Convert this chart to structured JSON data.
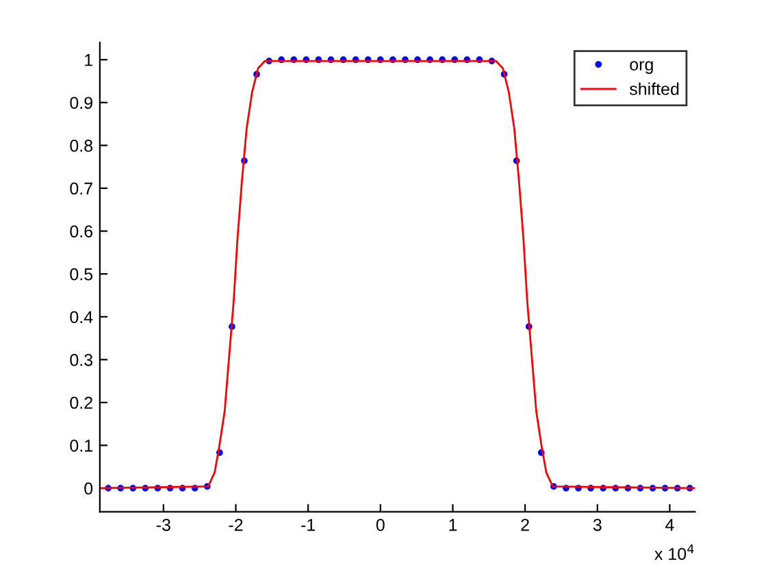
{
  "chart_data": {
    "type": "line",
    "series": [
      {
        "name": "org",
        "type": "scatter",
        "color": "#0000ff",
        "marker": "circle",
        "x": [
          -3.7642,
          -3.5931,
          -3.422,
          -3.2509,
          -3.0798,
          -2.9087,
          -2.7376,
          -2.5665,
          -2.3954,
          -2.2243,
          -2.0532,
          -1.8821,
          -1.711,
          -1.5399,
          -1.3688,
          -1.1977,
          -1.0266,
          -0.8555,
          -0.6844,
          -0.5133,
          -0.3422,
          -0.1711,
          0,
          0.1711,
          0.3422,
          0.5133,
          0.6844,
          0.8555,
          1.0266,
          1.1977,
          1.3688,
          1.5399,
          1.711,
          1.8821,
          2.0532,
          2.2243,
          2.3954,
          2.5665,
          2.7376,
          2.9087,
          3.0798,
          3.2509,
          3.422,
          3.5931,
          3.7642,
          3.9353,
          4.1064,
          4.2775
        ],
        "values": [
          0,
          0,
          0,
          0,
          0,
          0,
          0,
          0,
          0.004,
          0.083,
          0.377,
          0.764,
          0.966,
          0.997,
          1,
          1,
          1,
          1,
          1,
          1,
          1,
          1,
          1,
          1,
          1,
          1,
          1,
          1,
          1,
          1,
          1,
          0.997,
          0.966,
          0.764,
          0.377,
          0.083,
          0.004,
          0,
          0,
          0,
          0,
          0,
          0,
          0,
          0,
          0,
          0,
          0
        ]
      },
      {
        "name": "shifted",
        "color": "#ff0000",
        "line_style": "solid",
        "x": [
          -3.88,
          -2.383,
          -2.294,
          -2.231,
          -2.154,
          -2.091,
          -2.028,
          -1.978,
          -1.914,
          -1.85,
          -1.774,
          -1.692,
          -1.597,
          1.597,
          1.692,
          1.774,
          1.85,
          1.914,
          1.978,
          2.028,
          2.091,
          2.154,
          2.231,
          2.294,
          2.383,
          4.35
        ],
        "values": [
          0,
          0.004,
          0.036,
          0.095,
          0.18,
          0.31,
          0.44,
          0.58,
          0.72,
          0.84,
          0.925,
          0.98,
          0.997,
          0.997,
          0.98,
          0.925,
          0.84,
          0.72,
          0.58,
          0.44,
          0.31,
          0.18,
          0.095,
          0.036,
          0.004,
          0
        ]
      }
    ],
    "xlim": [
      -3.88,
      4.35
    ],
    "xticks": [
      -3,
      -2,
      -1,
      0,
      1,
      2,
      3,
      4
    ],
    "ylim": [
      -0.055,
      1.04
    ],
    "yticks": [
      0,
      0.1,
      0.2,
      0.3,
      0.4,
      0.5,
      0.6,
      0.7,
      0.8,
      0.9,
      1
    ],
    "annotations": [
      "x 10$^{4}$"
    ],
    "legend": "top right"
  }
}
